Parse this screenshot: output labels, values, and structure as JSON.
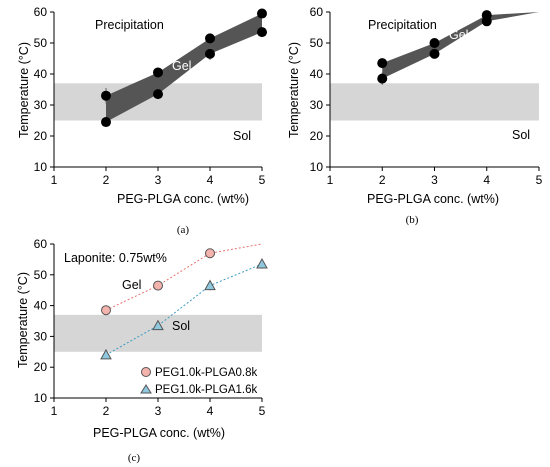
{
  "colors": {
    "band": "#d6d6d6",
    "gel_fill": "#555555",
    "marker": "#000000",
    "series_red": "#e8736f",
    "series_red_fill": "#f4b3ad",
    "series_blue": "#3d9cc4",
    "series_blue_fill": "#8fc8de",
    "axis": "#000000"
  },
  "chart_data": [
    {
      "type": "line",
      "caption": "(a)",
      "xlabel": "PEG-PLGA conc. (wt%)",
      "ylabel": "Temperature (°C)",
      "xlim": [
        1,
        5
      ],
      "ylim": [
        10,
        60
      ],
      "x_ticks": [
        "1",
        "2",
        "3",
        "4",
        "5"
      ],
      "y_ticks": [
        "10",
        "20",
        "30",
        "40",
        "50",
        "60"
      ],
      "grid": false,
      "shaded_band": [
        25,
        37
      ],
      "regions": {
        "precipitation": "Precipitation",
        "gel": "Gel",
        "sol": "Sol"
      },
      "series": [
        {
          "role": "upper",
          "x": [
            2,
            3,
            4,
            5
          ],
          "y": [
            33,
            40.5,
            51.5,
            59.5
          ],
          "err": [
            2.5,
            1,
            1.5,
            0.5
          ]
        },
        {
          "role": "lower",
          "x": [
            2,
            3,
            4,
            5
          ],
          "y": [
            24.5,
            33.5,
            46.5,
            53.5
          ],
          "err": [
            1.2,
            0.5,
            2,
            0.5
          ]
        }
      ]
    },
    {
      "type": "line",
      "caption": "(b)",
      "xlabel": "PEG-PLGA conc. (wt%)",
      "ylabel": "Temperature (°C)",
      "xlim": [
        1,
        5
      ],
      "ylim": [
        10,
        60
      ],
      "x_ticks": [
        "1",
        "2",
        "3",
        "4",
        "5"
      ],
      "y_ticks": [
        "10",
        "20",
        "30",
        "40",
        "50",
        "60"
      ],
      "grid": false,
      "shaded_band": [
        25,
        37
      ],
      "regions": {
        "precipitation": "Precipitation",
        "gel": "Gel",
        "sol": "Sol"
      },
      "series": [
        {
          "role": "upper",
          "x": [
            2,
            3,
            4,
            5
          ],
          "y": [
            43.5,
            50,
            59,
            60.5
          ],
          "err": [
            0.5,
            0.8,
            0.8,
            0
          ],
          "marker_count": 3
        },
        {
          "role": "lower",
          "x": [
            2,
            3,
            4,
            5
          ],
          "y": [
            38.5,
            46.5,
            57,
            60.5
          ],
          "err": [
            2,
            0.5,
            0.8,
            0
          ],
          "marker_count": 3
        }
      ]
    },
    {
      "type": "line",
      "caption": "(c)",
      "xlabel": "PEG-PLGA conc. (wt%)",
      "ylabel": "Temperature (°C)",
      "xlim": [
        1,
        5
      ],
      "ylim": [
        10,
        60
      ],
      "x_ticks": [
        "1",
        "2",
        "3",
        "4",
        "5"
      ],
      "y_ticks": [
        "10",
        "20",
        "30",
        "40",
        "50",
        "60"
      ],
      "grid": false,
      "shaded_band": [
        25,
        37
      ],
      "annotation": "Laponite: 0.75wt%",
      "regions": {
        "gel": "Gel",
        "sol": "Sol"
      },
      "legend_position": "bottom-right",
      "series": [
        {
          "name": "PEG1.0k-PLGA0.8k",
          "marker": "circle",
          "x": [
            2,
            3,
            4,
            5
          ],
          "y": [
            38.5,
            46.5,
            57,
            60
          ],
          "err": [
            1.5,
            0.8,
            0.5,
            0
          ],
          "marker_count": 3
        },
        {
          "name": "PEG1.0k-PLGA1.6k",
          "marker": "triangle",
          "x": [
            2,
            3,
            4,
            5
          ],
          "y": [
            24,
            33.5,
            46.5,
            53.5
          ],
          "err": [
            0.8,
            1,
            1.5,
            1.5
          ],
          "marker_count": 4
        }
      ]
    }
  ]
}
